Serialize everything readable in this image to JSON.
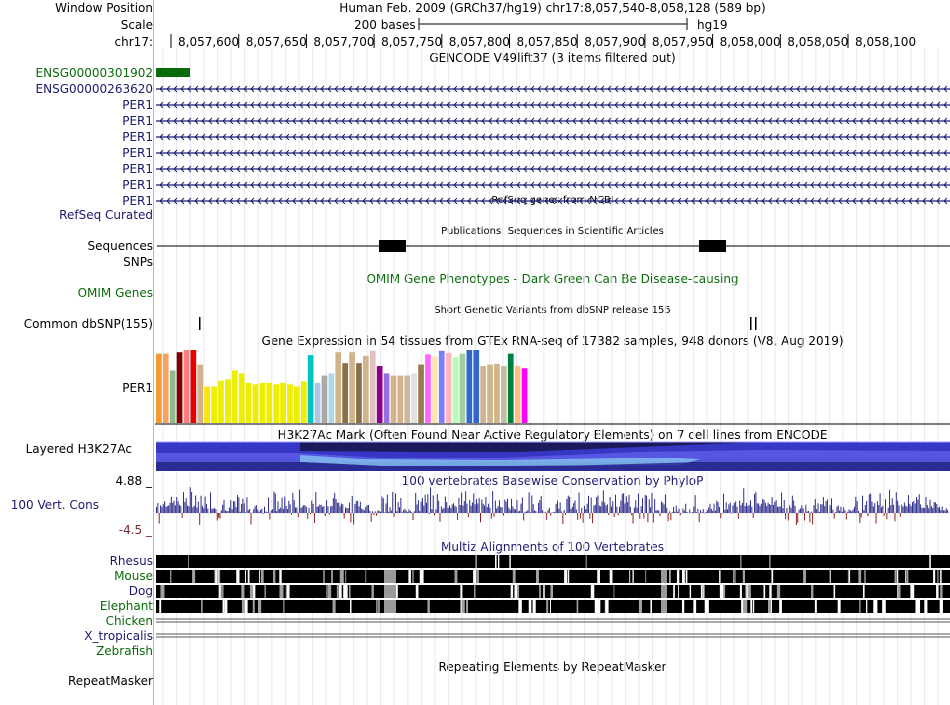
{
  "header": {
    "window_position_label": "Window Position",
    "window_position_value": "Human Feb. 2009 (GRCh37/hg19)   chr17:8,057,540-8,058,128 (589 bp)",
    "scale_label": "Scale",
    "scale_bases": "200 bases",
    "scale_assembly": "hg19",
    "chrom_label": "chr17:",
    "ruler_ticks": [
      "8,057,600",
      "8,057,650",
      "8,057,700",
      "8,057,750",
      "8,057,800",
      "8,057,850",
      "8,057,900",
      "8,057,950",
      "8,058,000",
      "8,058,050",
      "8,058,100"
    ]
  },
  "gencode": {
    "title": "GENCODE V49lift37 (3 items filtered out)",
    "genes": [
      {
        "name": "ENSG00000301902",
        "color": "#0a6b0a"
      },
      {
        "name": "ENSG00000263620",
        "color": "#1a1a6e"
      },
      {
        "name": "PER1",
        "color": "#1a1a6e"
      },
      {
        "name": "PER1",
        "color": "#1a1a6e"
      },
      {
        "name": "PER1",
        "color": "#1a1a6e"
      },
      {
        "name": "PER1",
        "color": "#1a1a6e"
      },
      {
        "name": "PER1",
        "color": "#1a1a6e"
      },
      {
        "name": "PER1",
        "color": "#1a1a6e"
      },
      {
        "name": "PER1",
        "color": "#1a1a6e"
      }
    ]
  },
  "refseq": {
    "label": "RefSeq Curated",
    "title": "RefSeq genes from NCBI"
  },
  "publications": {
    "label": "Sequences",
    "title": "Publications: Sequences in Scientific Articles"
  },
  "snps_label": "SNPs",
  "omim": {
    "label": "OMIM Genes",
    "title": "OMIM Gene Phenotypes - Dark Green Can Be Disease-causing"
  },
  "dbsnp": {
    "label": "Common dbSNP(155)",
    "title": "Short Genetic Variants from dbSNP release 155"
  },
  "gtex": {
    "label": "PER1",
    "title": "Gene Expression in 54 tissues from GTEx RNA-seq of 17382 samples, 948 donors (V8, Aug 2019)",
    "bar_colors": [
      "#f49a2e",
      "#f4a460",
      "#8fbc8f",
      "#7f0000",
      "#ff7f7f",
      "#e60000",
      "#d2b48c",
      "#ffe400",
      "#eeee00",
      "#eeee00",
      "#eeee00",
      "#eeee00",
      "#eeee00",
      "#eeee00",
      "#eeee00",
      "#eeee00",
      "#eeee00",
      "#eeee00",
      "#eeee00",
      "#eeee00",
      "#eeee00",
      "#eeee00",
      "#00c4c4",
      "#b0c4de",
      "#a9a9a9",
      "#add8e6",
      "#d2b48c",
      "#8b6f47",
      "#d2b48c",
      "#8b6f47",
      "#d2b48c",
      "#e0c0c0",
      "#8b008b",
      "#9370db",
      "#d2b48c",
      "#d2b48c",
      "#cdb79e",
      "#e0e0e0",
      "#9d7a4c",
      "#ff66ff",
      "#ffe4b5",
      "#7d7dff",
      "#ffb6c1",
      "#b3ffb3",
      "#a0d0a0",
      "#3366cc",
      "#3366cc",
      "#d2b48c",
      "#d2b48c",
      "#d2b48c",
      "#c0c0a0",
      "#008040",
      "#ffbf80",
      "#ff00ff"
    ],
    "bar_values": [
      0.95,
      0.95,
      0.72,
      0.97,
      1.0,
      1.0,
      0.8,
      0.5,
      0.5,
      0.58,
      0.6,
      0.72,
      0.68,
      0.55,
      0.53,
      0.55,
      0.55,
      0.53,
      0.55,
      0.53,
      0.5,
      0.57,
      0.93,
      0.55,
      0.65,
      0.68,
      0.97,
      0.82,
      0.97,
      0.82,
      0.92,
      0.99,
      0.78,
      0.68,
      0.65,
      0.65,
      0.65,
      0.68,
      0.8,
      0.94,
      0.91,
      0.99,
      0.96,
      0.9,
      0.95,
      1.0,
      1.0,
      0.78,
      0.8,
      0.81,
      0.78,
      0.95,
      0.78,
      0.75
    ]
  },
  "h3k27ac": {
    "label": "Layered H3K27Ac",
    "title": "H3K27Ac Mark (Often Found Near Active Regulatory Elements) on 7 cell lines from ENCODE"
  },
  "conservation": {
    "label": "100 Vert. Cons",
    "ymax": "4.88 _",
    "ymin": "-4.5 _",
    "title": "100 vertebrates Basewise Conservation by PhyloP"
  },
  "multiz": {
    "title": "Multiz Alignments of 100 Vertebrates",
    "species": [
      {
        "name": "Rhesus",
        "color": "#1a1a6e"
      },
      {
        "name": "Mouse",
        "color": "#0a6b0a"
      },
      {
        "name": "Dog",
        "color": "#1a1a6e"
      },
      {
        "name": "Elephant",
        "color": "#0a6b0a"
      },
      {
        "name": "Chicken",
        "color": "#0a6b0a"
      },
      {
        "name": "X_tropicalis",
        "color": "#1a1a6e"
      },
      {
        "name": "Zebrafish",
        "color": "#0a6b0a"
      }
    ]
  },
  "repeatmasker": {
    "label": "RepeatMasker",
    "title": "Repeating Elements by RepeatMasker"
  }
}
